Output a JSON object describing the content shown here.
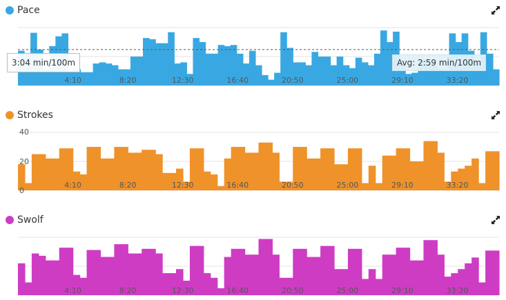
{
  "pace": {
    "title": "Pace",
    "color": "#39a8e2",
    "hover_tooltip": "3:04 min/100m",
    "avg_label": "Avg: 2:59 min/100m",
    "icon": "expand-icon"
  },
  "strokes": {
    "title": "Strokes",
    "color": "#ef922a",
    "icon": "expand-icon"
  },
  "swolf": {
    "title": "Swolf",
    "color": "#cf3cc4",
    "icon": "expand-icon"
  },
  "chart_data": [
    {
      "type": "area",
      "title": "Pace",
      "x_tick_labels": [
        "4:10",
        "8:20",
        "12:30",
        "16:40",
        "20:50",
        "25:00",
        "29:10",
        "33:20"
      ],
      "x_ticks_minutes": [
        4.1667,
        8.3333,
        12.5,
        16.6667,
        20.8333,
        25,
        29.1667,
        33.3333
      ],
      "x_range_minutes": [
        0,
        36.5
      ],
      "y_range": [
        0,
        1
      ],
      "avg_line": 0.62,
      "avg_label": "Avg: 2:59 min/100m",
      "hover_tooltip": "3:04 min/100m",
      "values": [
        0.6,
        0.55,
        0.91,
        0.62,
        0.28,
        0.68,
        0.85,
        0.9,
        0.25,
        0.28,
        0.23,
        0.23,
        0.38,
        0.4,
        0.38,
        0.35,
        0.28,
        0.28,
        0.5,
        0.5,
        0.82,
        0.8,
        0.73,
        0.73,
        0.92,
        0.38,
        0.4,
        0.2,
        0.82,
        0.75,
        0.55,
        0.55,
        0.7,
        0.68,
        0.7,
        0.55,
        0.38,
        0.6,
        0.35,
        0.18,
        0.1,
        0.22,
        0.92,
        0.65,
        0.4,
        0.4,
        0.35,
        0.58,
        0.5,
        0.5,
        0.35,
        0.5,
        0.35,
        0.3,
        0.48,
        0.4,
        0.35,
        0.55,
        0.95,
        0.75,
        0.93,
        0.35,
        0.2,
        0.22,
        0.45,
        0.45,
        0.35,
        0.28,
        0.28,
        0.9,
        0.75,
        0.9,
        0.6,
        0.38,
        0.92,
        0.55,
        0.28
      ]
    },
    {
      "type": "area",
      "title": "Strokes",
      "x_tick_labels": [
        "4:10",
        "8:20",
        "12:30",
        "16:40",
        "20:50",
        "25:00",
        "29:10",
        "33:20"
      ],
      "x_ticks_minutes": [
        4.1667,
        8.3333,
        12.5,
        16.6667,
        20.8333,
        25,
        29.1667,
        33.3333
      ],
      "x_range_minutes": [
        0,
        36.5
      ],
      "y_tick_labels": [
        "0",
        "20",
        "40"
      ],
      "y_range": [
        0,
        40
      ],
      "values": [
        18,
        5,
        25,
        25,
        22,
        22,
        29,
        29,
        13,
        11,
        30,
        30,
        22,
        22,
        30,
        30,
        26,
        26,
        28,
        28,
        25,
        12,
        12,
        15,
        6,
        29,
        29,
        13,
        11,
        3,
        22,
        30,
        30,
        26,
        26,
        33,
        33,
        26,
        6,
        6,
        30,
        30,
        22,
        22,
        29,
        29,
        18,
        18,
        29,
        29,
        5,
        17,
        5,
        24,
        24,
        29,
        29,
        20,
        20,
        34,
        34,
        26,
        6,
        13,
        15,
        17,
        22,
        5,
        27,
        27
      ]
    },
    {
      "type": "area",
      "title": "Swolf",
      "x_tick_labels": [
        "4:10",
        "8:20",
        "12:30",
        "16:40",
        "20:50",
        "25:00",
        "29:10",
        "33:20"
      ],
      "x_ticks_minutes": [
        4.1667,
        8.3333,
        12.5,
        16.6667,
        20.8333,
        25,
        29.1667,
        33.3333
      ],
      "x_range_minutes": [
        0,
        36.5
      ],
      "y_range": [
        0,
        1
      ],
      "values": [
        0.55,
        0.22,
        0.72,
        0.68,
        0.6,
        0.6,
        0.82,
        0.82,
        0.35,
        0.3,
        0.78,
        0.78,
        0.66,
        0.66,
        0.88,
        0.88,
        0.72,
        0.72,
        0.8,
        0.8,
        0.72,
        0.38,
        0.38,
        0.45,
        0.25,
        0.85,
        0.85,
        0.38,
        0.3,
        0.12,
        0.66,
        0.8,
        0.8,
        0.7,
        0.7,
        0.97,
        0.97,
        0.7,
        0.3,
        0.3,
        0.8,
        0.8,
        0.66,
        0.66,
        0.85,
        0.85,
        0.45,
        0.45,
        0.8,
        0.8,
        0.28,
        0.45,
        0.28,
        0.7,
        0.7,
        0.82,
        0.82,
        0.6,
        0.6,
        0.95,
        0.95,
        0.7,
        0.32,
        0.38,
        0.45,
        0.55,
        0.65,
        0.22,
        0.77,
        0.77
      ]
    }
  ]
}
